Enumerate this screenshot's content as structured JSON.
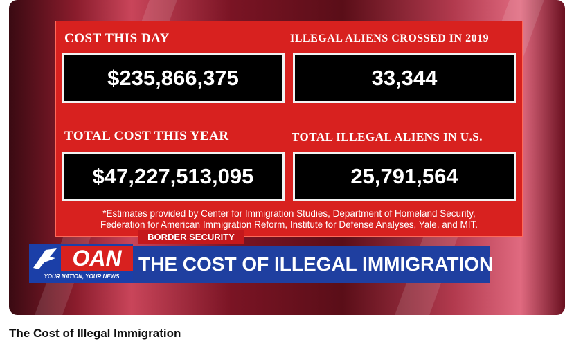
{
  "video": {
    "panels": [
      {
        "label": "COST THIS DAY",
        "value": "$235,866,375"
      },
      {
        "label": "ILLEGAL ALIENS CROSSED IN 2019",
        "value": "33,344"
      },
      {
        "label": "TOTAL COST THIS YEAR",
        "value": "$47,227,513,095"
      },
      {
        "label": "TOTAL ILLEGAL ALIENS IN U.S.",
        "value": "25,791,564"
      }
    ],
    "footnote": [
      "*Estimates provided by Center for Immigration Studies, Department of Homeland Security,",
      "Federation for American Immigration Reform, Institute for Defense Analyses, Yale, and MIT."
    ],
    "tag": "BORDER SECURITY",
    "logo": "OAN",
    "tagline": "YOUR NATION, YOUR NEWS",
    "headline": "THE COST OF ILLEGAL IMMIGRATION"
  },
  "page": {
    "title": "The Cost of Illegal Immigration"
  }
}
